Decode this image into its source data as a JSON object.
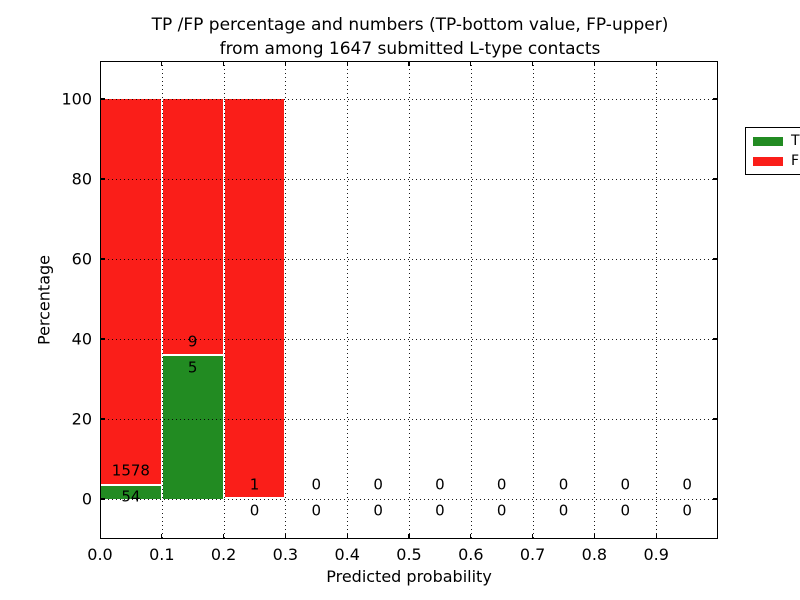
{
  "figure": {
    "title_line1": "TP /FP percentage and numbers (TP-bottom value, FP-upper)",
    "title_line2": "from among 1647 submitted L-type contacts",
    "xlabel": "Predicted probability",
    "ylabel": "Percentage"
  },
  "legend": {
    "position": "upper right",
    "items": [
      {
        "label": "TP",
        "color": "#228b22"
      },
      {
        "label": "FP",
        "color": "#fa1e19"
      }
    ]
  },
  "chart_data": {
    "type": "bar",
    "stacked": true,
    "title": "TP /FP percentage and numbers (TP-bottom value, FP-upper) from among 1647 submitted L-type contacts",
    "xlabel": "Predicted probability",
    "ylabel": "Percentage",
    "total_contacts": 1647,
    "xlim": [
      0.0,
      1.0
    ],
    "ylim": [
      -10,
      109.5
    ],
    "xtick_labels": [
      "0.0",
      "0.1",
      "0.2",
      "0.3",
      "0.4",
      "0.5",
      "0.6",
      "0.7",
      "0.8",
      "0.9"
    ],
    "yticks": [
      0,
      20,
      40,
      60,
      80,
      100
    ],
    "grid": "dotted, both axes, drawn over bars",
    "bar_edge_color": "#ffffff",
    "colors": {
      "tp": "#228b22",
      "fp": "#fa1e19"
    },
    "bins": [
      {
        "x0": 0.0,
        "x1": 0.1,
        "tp_count": 54,
        "fp_count": 1578,
        "tp_pct": 3.31,
        "fp_pct": 96.69
      },
      {
        "x0": 0.1,
        "x1": 0.2,
        "tp_count": 5,
        "fp_count": 9,
        "tp_pct": 35.71,
        "fp_pct": 64.29
      },
      {
        "x0": 0.2,
        "x1": 0.3,
        "tp_count": 0,
        "fp_count": 1,
        "tp_pct": 0.0,
        "fp_pct": 100.0
      },
      {
        "x0": 0.3,
        "x1": 0.4,
        "tp_count": 0,
        "fp_count": 0,
        "tp_pct": 0.0,
        "fp_pct": 0.0
      },
      {
        "x0": 0.4,
        "x1": 0.5,
        "tp_count": 0,
        "fp_count": 0,
        "tp_pct": 0.0,
        "fp_pct": 0.0
      },
      {
        "x0": 0.5,
        "x1": 0.6,
        "tp_count": 0,
        "fp_count": 0,
        "tp_pct": 0.0,
        "fp_pct": 0.0
      },
      {
        "x0": 0.6,
        "x1": 0.7,
        "tp_count": 0,
        "fp_count": 0,
        "tp_pct": 0.0,
        "fp_pct": 0.0
      },
      {
        "x0": 0.7,
        "x1": 0.8,
        "tp_count": 0,
        "fp_count": 0,
        "tp_pct": 0.0,
        "fp_pct": 0.0
      },
      {
        "x0": 0.8,
        "x1": 0.9,
        "tp_count": 0,
        "fp_count": 0,
        "tp_pct": 0.0,
        "fp_pct": 0.0
      },
      {
        "x0": 0.9,
        "x1": 1.0,
        "tp_count": 0,
        "fp_count": 0,
        "tp_pct": 0.0,
        "fp_pct": 0.0
      }
    ],
    "series": [
      {
        "name": "TP",
        "color": "#228b22",
        "percent": [
          3.31,
          35.71,
          0,
          0,
          0,
          0,
          0,
          0,
          0,
          0
        ],
        "counts": [
          54,
          5,
          0,
          0,
          0,
          0,
          0,
          0,
          0,
          0
        ]
      },
      {
        "name": "FP",
        "color": "#fa1e19",
        "percent": [
          96.69,
          64.29,
          100,
          0,
          0,
          0,
          0,
          0,
          0,
          0
        ],
        "counts": [
          1578,
          9,
          1,
          0,
          0,
          0,
          0,
          0,
          0,
          0
        ]
      }
    ]
  }
}
